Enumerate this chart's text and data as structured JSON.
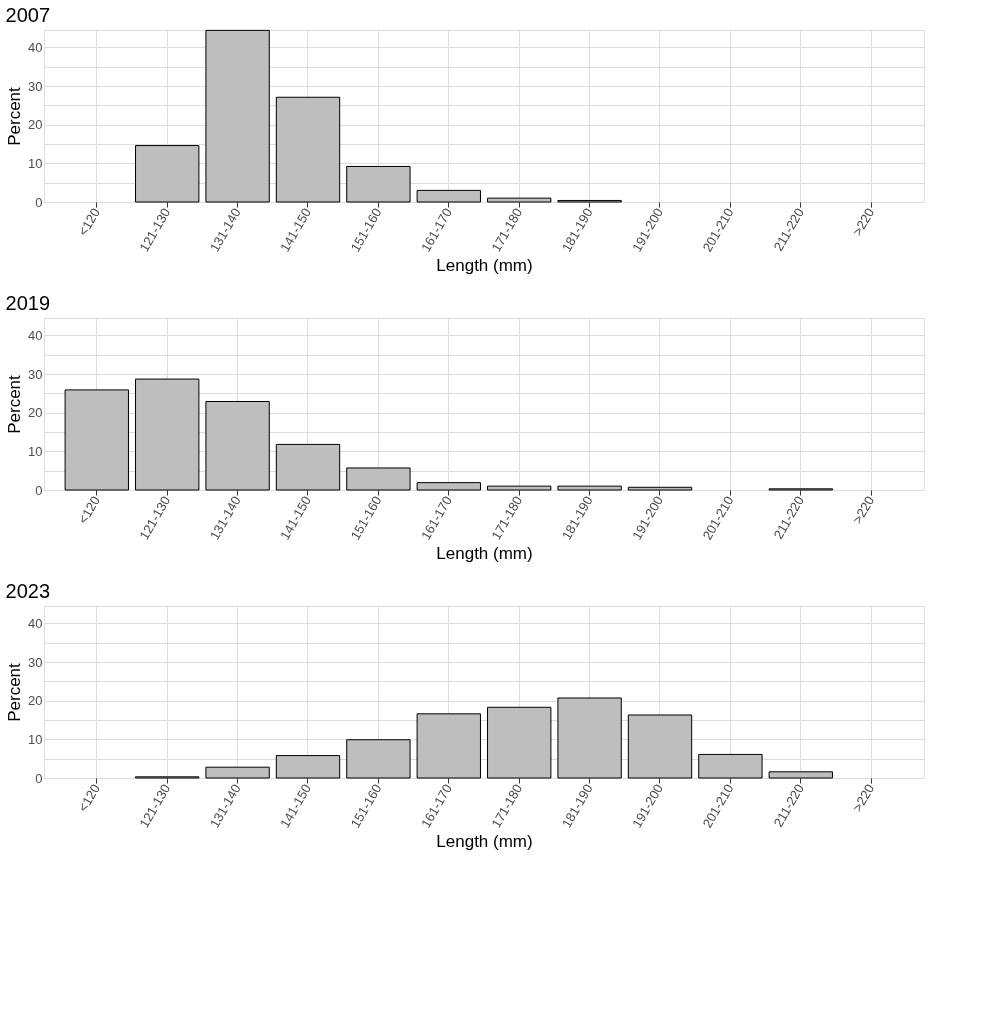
{
  "chart_data": [
    {
      "type": "bar",
      "title": "2007",
      "xlabel": "Length (mm)",
      "ylabel": "Percent",
      "categories": [
        "<120",
        "121-130",
        "131-140",
        "141-150",
        "151-160",
        "161-170",
        "171-180",
        "181-190",
        "191-200",
        "201-210",
        "211-220",
        ">220"
      ],
      "series": [
        {
          "color": "#bebebe",
          "values": [
            null,
            14.6,
            44.4,
            27.1,
            9.2,
            3.0,
            1.0,
            0.4,
            null,
            null,
            null,
            null
          ]
        }
      ],
      "ylim": [
        0,
        44.5
      ],
      "yticks": [
        0,
        {
          "value": 5,
          "label": null
        },
        10,
        {
          "value": 15,
          "label": null
        },
        20,
        {
          "value": 25,
          "label": null
        },
        30,
        {
          "value": 35,
          "label": null
        },
        40
      ],
      "grid": true
    },
    {
      "type": "bar",
      "title": "2019",
      "xlabel": "Length (mm)",
      "ylabel": "Percent",
      "categories": [
        "<120",
        "121-130",
        "131-140",
        "141-150",
        "151-160",
        "161-170",
        "171-180",
        "181-190",
        "191-200",
        "201-210",
        "211-220",
        ">220"
      ],
      "series": [
        {
          "color": "#bebebe",
          "values": [
            25.9,
            28.7,
            22.9,
            11.8,
            5.7,
            1.9,
            1.0,
            1.0,
            0.7,
            null,
            0.3,
            null
          ]
        }
      ],
      "ylim": [
        0,
        44.5
      ],
      "yticks": [
        0,
        {
          "value": 5,
          "label": null
        },
        10,
        {
          "value": 15,
          "label": null
        },
        20,
        {
          "value": 25,
          "label": null
        },
        30,
        {
          "value": 35,
          "label": null
        },
        40
      ],
      "grid": true
    },
    {
      "type": "bar",
      "title": "2023",
      "xlabel": "Length (mm)",
      "ylabel": "Percent",
      "categories": [
        "<120",
        "121-130",
        "131-140",
        "141-150",
        "151-160",
        "161-170",
        "171-180",
        "181-190",
        "191-200",
        "201-210",
        "211-220",
        ">220"
      ],
      "series": [
        {
          "color": "#bebebe",
          "values": [
            null,
            0.3,
            2.8,
            5.8,
            9.9,
            16.6,
            18.3,
            20.7,
            16.3,
            6.1,
            1.6,
            null
          ]
        }
      ],
      "ylim": [
        0,
        44.5
      ],
      "yticks": [
        0,
        {
          "value": 5,
          "label": null
        },
        10,
        {
          "value": 15,
          "label": null
        },
        20,
        {
          "value": 25,
          "label": null
        },
        30,
        {
          "value": 35,
          "label": null
        },
        40
      ],
      "grid": true
    }
  ]
}
